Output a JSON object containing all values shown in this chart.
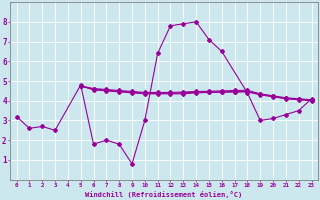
{
  "x": [
    0,
    1,
    2,
    3,
    4,
    5,
    6,
    7,
    8,
    9,
    10,
    11,
    12,
    13,
    14,
    15,
    16,
    17,
    18,
    19,
    20,
    21,
    22,
    23
  ],
  "line1": [
    3.2,
    2.6,
    2.7,
    2.5,
    null,
    4.8,
    1.8,
    2.0,
    1.8,
    0.8,
    3.0,
    6.4,
    7.8,
    7.9,
    8.0,
    7.1,
    6.5,
    null,
    4.4,
    3.0,
    3.1,
    3.3,
    3.5,
    4.1
  ],
  "line2": [
    null,
    null,
    null,
    null,
    null,
    4.75,
    4.55,
    4.5,
    4.45,
    4.4,
    4.35,
    4.35,
    4.35,
    4.35,
    4.4,
    4.42,
    4.43,
    4.44,
    4.45,
    4.3,
    4.2,
    4.1,
    4.05,
    4.0
  ],
  "line3": [
    null,
    null,
    null,
    null,
    null,
    4.75,
    4.58,
    4.53,
    4.48,
    4.43,
    4.38,
    4.38,
    4.38,
    4.4,
    4.43,
    4.44,
    4.45,
    4.46,
    4.47,
    4.32,
    4.22,
    4.12,
    4.07,
    4.02
  ],
  "line4": [
    null,
    null,
    null,
    null,
    null,
    4.75,
    4.62,
    4.57,
    4.52,
    4.47,
    4.42,
    4.42,
    4.42,
    4.44,
    4.47,
    4.48,
    4.5,
    4.52,
    4.53,
    4.35,
    4.25,
    4.15,
    4.1,
    4.05
  ],
  "bg_color": "#cce8ee",
  "grid_color": "#ffffff",
  "line_color": "#990099",
  "spine_color": "#808080",
  "xlabel": "Windchill (Refroidissement éolien,°C)",
  "xlim": [
    -0.5,
    23.5
  ],
  "ylim": [
    0,
    9
  ],
  "xticks": [
    0,
    1,
    2,
    3,
    4,
    5,
    6,
    7,
    8,
    9,
    10,
    11,
    12,
    13,
    14,
    15,
    16,
    17,
    18,
    19,
    20,
    21,
    22,
    23
  ],
  "yticks": [
    1,
    2,
    3,
    4,
    5,
    6,
    7,
    8
  ],
  "marker": "D",
  "markersize": 2.0,
  "linewidth": 0.8
}
